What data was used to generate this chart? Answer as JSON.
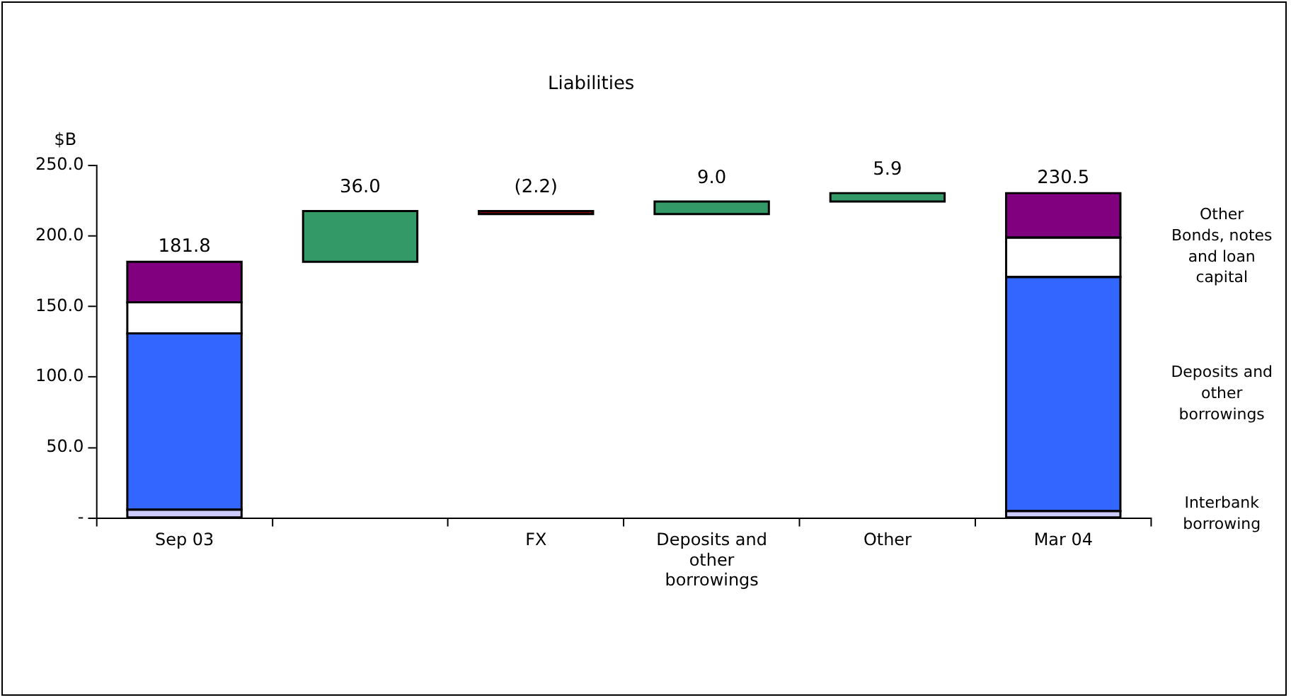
{
  "chart_data": {
    "type": "bar",
    "title": "Liabilities",
    "ylabel": "$B",
    "stacked": true,
    "legend": false,
    "grid": false,
    "categories": [
      "Sep 03",
      null,
      "FX",
      "Deposits and other borrowings",
      "Other",
      "Mar 04"
    ],
    "ylim": [
      0,
      250
    ],
    "yticks": [
      {
        "value": 0,
        "label": "-"
      },
      {
        "value": 50,
        "label": "50.0"
      },
      {
        "value": 100,
        "label": "100.0"
      },
      {
        "value": 150,
        "label": "150.0"
      },
      {
        "value": 200,
        "label": "200.0"
      },
      {
        "value": 250,
        "label": "250.0"
      }
    ],
    "series": [
      {
        "name": "Interbank borrowing",
        "color": "#ccccff",
        "values": [
          6,
          null,
          null,
          null,
          null,
          5
        ]
      },
      {
        "name": "Deposits and other borrowings",
        "color": "#3366ff",
        "values": [
          125,
          null,
          null,
          null,
          null,
          166
        ]
      },
      {
        "name": "Bonds, notes and loan capital",
        "color": "#ffffff",
        "values": [
          22,
          null,
          null,
          null,
          null,
          28
        ]
      },
      {
        "name": "Other",
        "color": "#800080",
        "values": [
          28.8,
          null,
          null,
          null,
          null,
          31.5
        ]
      },
      {
        "colors": [
          null,
          "#339966",
          "#800000",
          "#339966",
          "#339966",
          null
        ],
        "values": [
          null,
          36.0,
          -2.2,
          9.0,
          5.9,
          null
        ],
        "base": [
          null,
          181.8,
          217.8,
          215.6,
          224.6,
          null
        ],
        "value_labels": [
          null,
          "36.0",
          "(2.2)",
          "9.0",
          "5.9",
          null
        ]
      }
    ],
    "totals": [
      "181.8",
      null,
      null,
      null,
      null,
      "230.5"
    ]
  }
}
